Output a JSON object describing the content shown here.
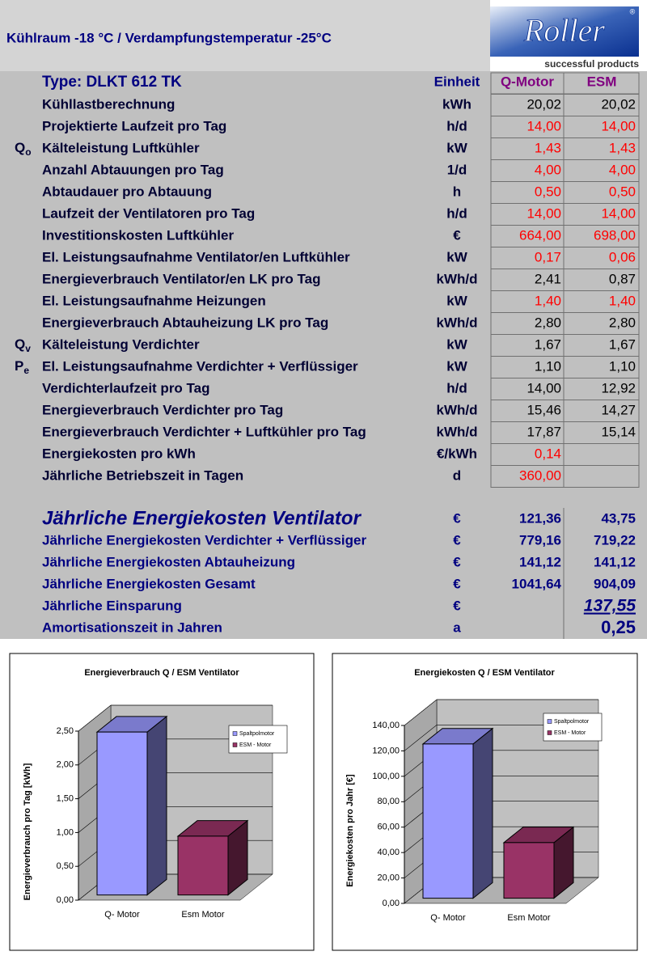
{
  "header": {
    "title": "Kühlraum -18 °C / Verdampfungstemperatur -25°C",
    "logo": "Roller",
    "logo_mark": "®",
    "slogan": "successful products"
  },
  "table": {
    "columns": [
      "Type: DLKT 612 TK",
      "Einheit",
      "Q-Motor",
      "ESM"
    ],
    "rows": [
      {
        "label": "Kühllastberechnung",
        "unit": "kWh",
        "q": "20,02",
        "esm": "20,02"
      },
      {
        "label": "Projektierte Laufzeit pro Tag",
        "unit": "h/d",
        "q": "14,00",
        "esm": "14,00",
        "color": "#ff0000"
      },
      {
        "symbol": {
          "main": "Q",
          "sub": "o"
        },
        "label": "Kälteleistung Luftkühler",
        "unit": "kW",
        "q": "1,43",
        "esm": "1,43",
        "color": "#ff0000"
      },
      {
        "label": "Anzahl Abtauungen pro Tag",
        "unit": "1/d",
        "q": "4,00",
        "esm": "4,00",
        "color": "#ff0000"
      },
      {
        "label": "Abtaudauer pro Abtauung",
        "unit": "h",
        "q": "0,50",
        "esm": "0,50",
        "color": "#ff0000"
      },
      {
        "label": "Laufzeit der Ventilatoren pro Tag",
        "unit": "h/d",
        "q": "14,00",
        "esm": "14,00",
        "color": "#ff0000"
      },
      {
        "label": "Investitionskosten Luftkühler",
        "unit": "€",
        "q": "664,00",
        "esm": "698,00",
        "color": "#ff0000"
      },
      {
        "label": "El. Leistungsaufnahme Ventilator/en Luftkühler",
        "unit": "kW",
        "q": "0,17",
        "esm": "0,06",
        "color": "#ff0000"
      },
      {
        "label": "Energieverbrauch Ventilator/en LK pro Tag",
        "unit": "kWh/d",
        "q": "2,41",
        "esm": "0,87"
      },
      {
        "label": "El. Leistungsaufnahme Heizungen",
        "unit": "kW",
        "q": "1,40",
        "esm": "1,40",
        "color": "#ff0000"
      },
      {
        "label": "Energieverbrauch Abtauheizung LK pro Tag",
        "unit": "kWh/d",
        "q": "2,80",
        "esm": "2,80"
      },
      {
        "symbol": {
          "main": "Q",
          "sub": "v"
        },
        "label": "Kälteleistung Verdichter",
        "unit": "kW",
        "q": "1,67",
        "esm": "1,67"
      },
      {
        "symbol": {
          "main": "P",
          "sub": "e"
        },
        "label": "El. Leistungsaufnahme Verdichter + Verflüssiger",
        "unit": "kW",
        "q": "1,10",
        "esm": "1,10"
      },
      {
        "label": "Verdichterlaufzeit pro Tag",
        "unit": "h/d",
        "q": "14,00",
        "esm": "12,92"
      },
      {
        "label": "Energieverbrauch Verdichter pro Tag",
        "unit": "kWh/d",
        "q": "15,46",
        "esm": "14,27"
      },
      {
        "label": "Energieverbrauch Verdichter + Luftkühler pro Tag",
        "unit": "kWh/d",
        "q": "17,87",
        "esm": "15,14"
      },
      {
        "label": "Energiekosten pro kWh",
        "unit": "€/kWh",
        "q": "0,14",
        "esm": null,
        "color": "#ff0000"
      },
      {
        "label": "Jährliche Betriebszeit in Tagen",
        "unit": "d",
        "q": "360,00",
        "esm": null,
        "color": "#ff0000"
      }
    ],
    "summary": [
      {
        "label": "Jährliche Energiekosten Ventilator",
        "unit": "€",
        "q": "121,36",
        "esm": "43,75",
        "emphasis": "title"
      },
      {
        "label": "Jährliche Energiekosten Verdichter + Verflüssiger",
        "unit": "€",
        "q": "779,16",
        "esm": "719,22"
      },
      {
        "label": "Jährliche Energiekosten Abtauheizung",
        "unit": "€",
        "q": "141,12",
        "esm": "141,12"
      },
      {
        "label": "Jährliche Energiekosten Gesamt",
        "unit": "€",
        "q": "1041,64",
        "esm": "904,09"
      },
      {
        "label": "Jährliche Einsparung",
        "unit": "€",
        "q": null,
        "esm": "137,55",
        "emphasis": "underline"
      },
      {
        "label": "Amortisationszeit in Jahren",
        "unit": "a",
        "q": null,
        "esm": "0,25",
        "emphasis": "large"
      }
    ]
  },
  "chart_data": [
    {
      "type": "bar3d",
      "title": "Energieverbrauch Q / ESM Ventilator",
      "ylabel": "Energieverbrauch pro Tag [kWh]",
      "categories": [
        "Q- Motor",
        "Esm Motor"
      ],
      "series": [
        {
          "name": "Spaltpolmotor",
          "color": "#9999ff",
          "values": [
            2.41,
            null
          ]
        },
        {
          "name": "ESM - Motor",
          "color": "#993366",
          "values": [
            null,
            0.87
          ]
        }
      ],
      "ylim": [
        0,
        2.5
      ],
      "yticks": [
        {
          "value": 0,
          "label": "0,00"
        },
        {
          "value": 0.5,
          "label": "0,50"
        },
        {
          "value": 1,
          "label": "1,00"
        },
        {
          "value": 1.5,
          "label": "1,50"
        },
        {
          "value": 2,
          "label": "2,00"
        },
        {
          "value": 2.5,
          "label": "2,50"
        }
      ],
      "grid": true,
      "legend": "top-right"
    },
    {
      "type": "bar3d",
      "title": "Energiekosten Q / ESM Ventilator",
      "ylabel": "Energiekosten pro Jahr [€]",
      "categories": [
        "Q- Motor",
        "Esm Motor"
      ],
      "series": [
        {
          "name": "Spaltpolmotor",
          "color": "#9999ff",
          "values": [
            121.36,
            null
          ]
        },
        {
          "name": "ESM - Motor",
          "color": "#993366",
          "values": [
            null,
            43.75
          ]
        }
      ],
      "ylim": [
        0,
        140
      ],
      "yticks": [
        {
          "value": 0,
          "label": "0,00"
        },
        {
          "value": 20,
          "label": "20,00"
        },
        {
          "value": 40,
          "label": "40,00"
        },
        {
          "value": 60,
          "label": "60,00"
        },
        {
          "value": 80,
          "label": "80,00"
        },
        {
          "value": 100,
          "label": "100,00"
        },
        {
          "value": 120,
          "label": "120,00"
        },
        {
          "value": 140,
          "label": "140,00"
        }
      ],
      "grid": true,
      "legend": "top-right"
    }
  ]
}
